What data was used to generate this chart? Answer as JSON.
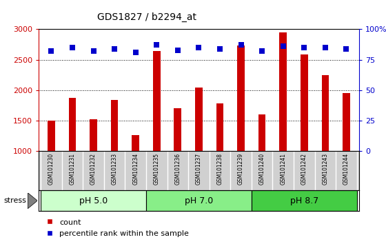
{
  "title": "GDS1827 / b2294_at",
  "categories": [
    "GSM101230",
    "GSM101231",
    "GSM101232",
    "GSM101233",
    "GSM101234",
    "GSM101235",
    "GSM101236",
    "GSM101237",
    "GSM101238",
    "GSM101239",
    "GSM101240",
    "GSM101241",
    "GSM101242",
    "GSM101243",
    "GSM101244"
  ],
  "counts": [
    1500,
    1880,
    1530,
    1840,
    1270,
    2640,
    1710,
    2040,
    1790,
    2730,
    1600,
    2950,
    2590,
    2250,
    1950
  ],
  "percentiles": [
    82,
    85,
    82,
    84,
    81,
    87,
    83,
    85,
    84,
    87,
    82,
    86,
    85,
    85,
    84
  ],
  "bar_color": "#cc0000",
  "dot_color": "#0000cc",
  "ylim_left": [
    1000,
    3000
  ],
  "ylim_right": [
    0,
    100
  ],
  "yticks_left": [
    1000,
    1500,
    2000,
    2500,
    3000
  ],
  "yticks_right": [
    0,
    25,
    50,
    75,
    100
  ],
  "groups": [
    {
      "label": "pH 5.0",
      "start": 0,
      "end": 5,
      "color": "#ccffcc"
    },
    {
      "label": "pH 7.0",
      "start": 5,
      "end": 10,
      "color": "#88ee88"
    },
    {
      "label": "pH 8.7",
      "start": 10,
      "end": 15,
      "color": "#44cc44"
    }
  ],
  "stress_label": "stress",
  "bar_width": 0.35,
  "dot_size": 30,
  "grid_style": "dotted",
  "legend_count_label": "count",
  "legend_pct_label": "percentile rank within the sample",
  "xtick_bg": "#d0d0d0",
  "plot_bg": "#ffffff"
}
